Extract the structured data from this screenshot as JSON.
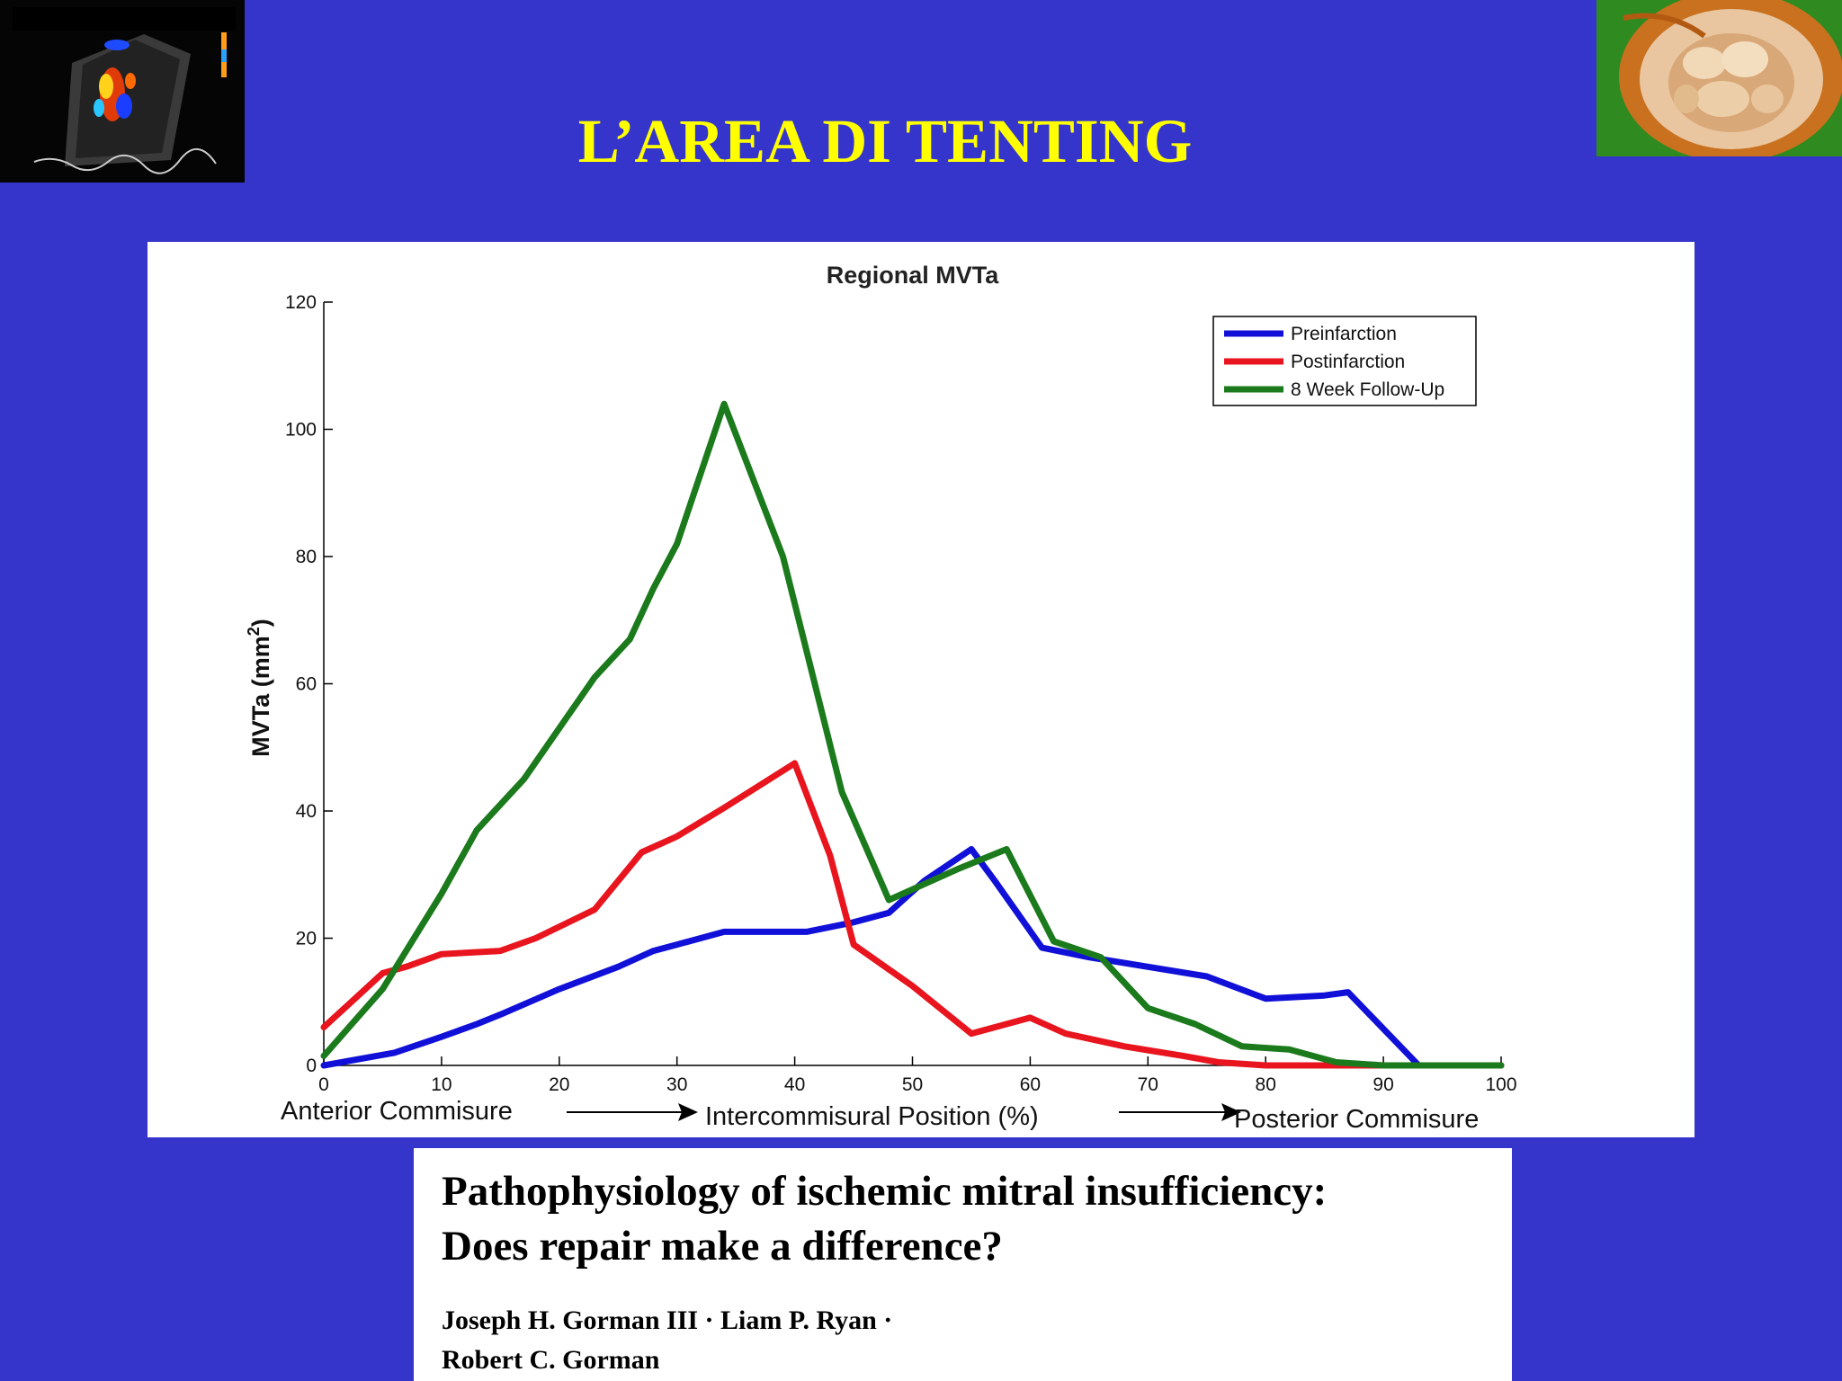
{
  "slide": {
    "title": "L’AREA DI TENTING"
  },
  "decor": {
    "left_image": "echocardiogram-doppler-image",
    "right_image": "mitral-valve-specimen-photo"
  },
  "paper": {
    "title_line1": "Pathophysiology of ischemic mitral insufficiency:",
    "title_line2": "Does repair make a difference?",
    "authors_line1": "Joseph H. Gorman III · Liam P. Ryan ·",
    "authors_line2": "Robert C. Gorman"
  },
  "chart_data": {
    "type": "line",
    "title": "Regional MVTa",
    "ylabel": "MVTa (mm",
    "ylabel_sup": "2",
    "ylabel_end": ")",
    "xlabel": "Intercommisural Position (%)",
    "xlabel_left": "Anterior Commisure",
    "xlabel_right": "Posterior Commisure",
    "xlim": [
      0,
      100
    ],
    "ylim": [
      0,
      120
    ],
    "xticks": [
      0,
      10,
      20,
      30,
      40,
      50,
      60,
      70,
      80,
      90,
      100
    ],
    "yticks": [
      0,
      20,
      40,
      60,
      80,
      100,
      120
    ],
    "legend_position": "top-right",
    "series": [
      {
        "name": "Preinfarction",
        "color": "#1010d8",
        "points": [
          [
            0,
            0
          ],
          [
            6,
            2
          ],
          [
            10,
            4.5
          ],
          [
            13,
            6.5
          ],
          [
            15,
            8
          ],
          [
            20,
            12
          ],
          [
            25,
            15.5
          ],
          [
            28,
            18
          ],
          [
            30,
            19
          ],
          [
            34,
            21
          ],
          [
            37,
            21
          ],
          [
            41,
            21
          ],
          [
            45,
            22.5
          ],
          [
            48,
            24
          ],
          [
            51,
            29
          ],
          [
            55,
            34
          ],
          [
            57,
            29
          ],
          [
            61,
            18.5
          ],
          [
            65,
            17
          ],
          [
            70,
            15.5
          ],
          [
            75,
            14
          ],
          [
            80,
            10.5
          ],
          [
            85,
            11
          ],
          [
            87,
            11.5
          ],
          [
            93,
            0
          ],
          [
            100,
            0
          ]
        ]
      },
      {
        "name": "Postinfarction",
        "color": "#e8141e",
        "points": [
          [
            0,
            6
          ],
          [
            5,
            14.5
          ],
          [
            7,
            15.5
          ],
          [
            10,
            17.5
          ],
          [
            15,
            18
          ],
          [
            18,
            20
          ],
          [
            23,
            24.5
          ],
          [
            27,
            33.5
          ],
          [
            30,
            36
          ],
          [
            34,
            40.5
          ],
          [
            40,
            47.5
          ],
          [
            43,
            33
          ],
          [
            45,
            19
          ],
          [
            50,
            12.5
          ],
          [
            55,
            5
          ],
          [
            60,
            7.5
          ],
          [
            63,
            5
          ],
          [
            68,
            3
          ],
          [
            73,
            1.5
          ],
          [
            76,
            0.5
          ],
          [
            80,
            0
          ],
          [
            90,
            0
          ],
          [
            100,
            0
          ]
        ]
      },
      {
        "name": "8 Week Follow-Up",
        "color": "#1b7a1b",
        "points": [
          [
            0,
            1.5
          ],
          [
            5,
            12
          ],
          [
            8,
            21
          ],
          [
            10,
            27
          ],
          [
            13,
            37
          ],
          [
            17,
            45
          ],
          [
            20,
            53
          ],
          [
            23,
            61
          ],
          [
            26,
            67
          ],
          [
            28,
            75
          ],
          [
            30,
            82
          ],
          [
            34,
            104
          ],
          [
            39,
            80
          ],
          [
            44,
            43
          ],
          [
            48,
            26
          ],
          [
            54,
            31
          ],
          [
            58,
            34
          ],
          [
            62,
            19.5
          ],
          [
            66,
            17
          ],
          [
            70,
            9
          ],
          [
            74,
            6.5
          ],
          [
            78,
            3
          ],
          [
            82,
            2.5
          ],
          [
            86,
            0.5
          ],
          [
            90,
            0
          ],
          [
            100,
            0
          ]
        ]
      }
    ]
  }
}
